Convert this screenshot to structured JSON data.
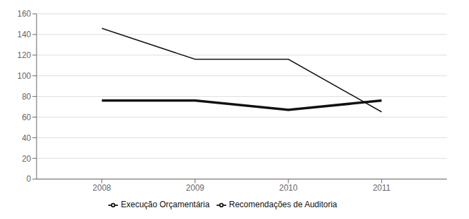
{
  "chart_data": {
    "type": "line",
    "x": [
      2008,
      2009,
      2010,
      2011
    ],
    "series": [
      {
        "name": "Execução Orçamentária",
        "color": "#111111",
        "values": [
          76,
          76,
          67,
          76
        ]
      },
      {
        "name": "Recomendações de Auditoria",
        "color": "#111111",
        "values": [
          146,
          116,
          116,
          65
        ]
      }
    ],
    "xlim": [
      2007.3,
      2011.7
    ],
    "xticks": [
      2008,
      2009,
      2010,
      2011
    ],
    "ylim": [
      0,
      160
    ],
    "yticks": [
      0,
      20,
      40,
      60,
      80,
      100,
      120,
      140,
      160
    ],
    "grid": true,
    "legend": "bottom"
  }
}
